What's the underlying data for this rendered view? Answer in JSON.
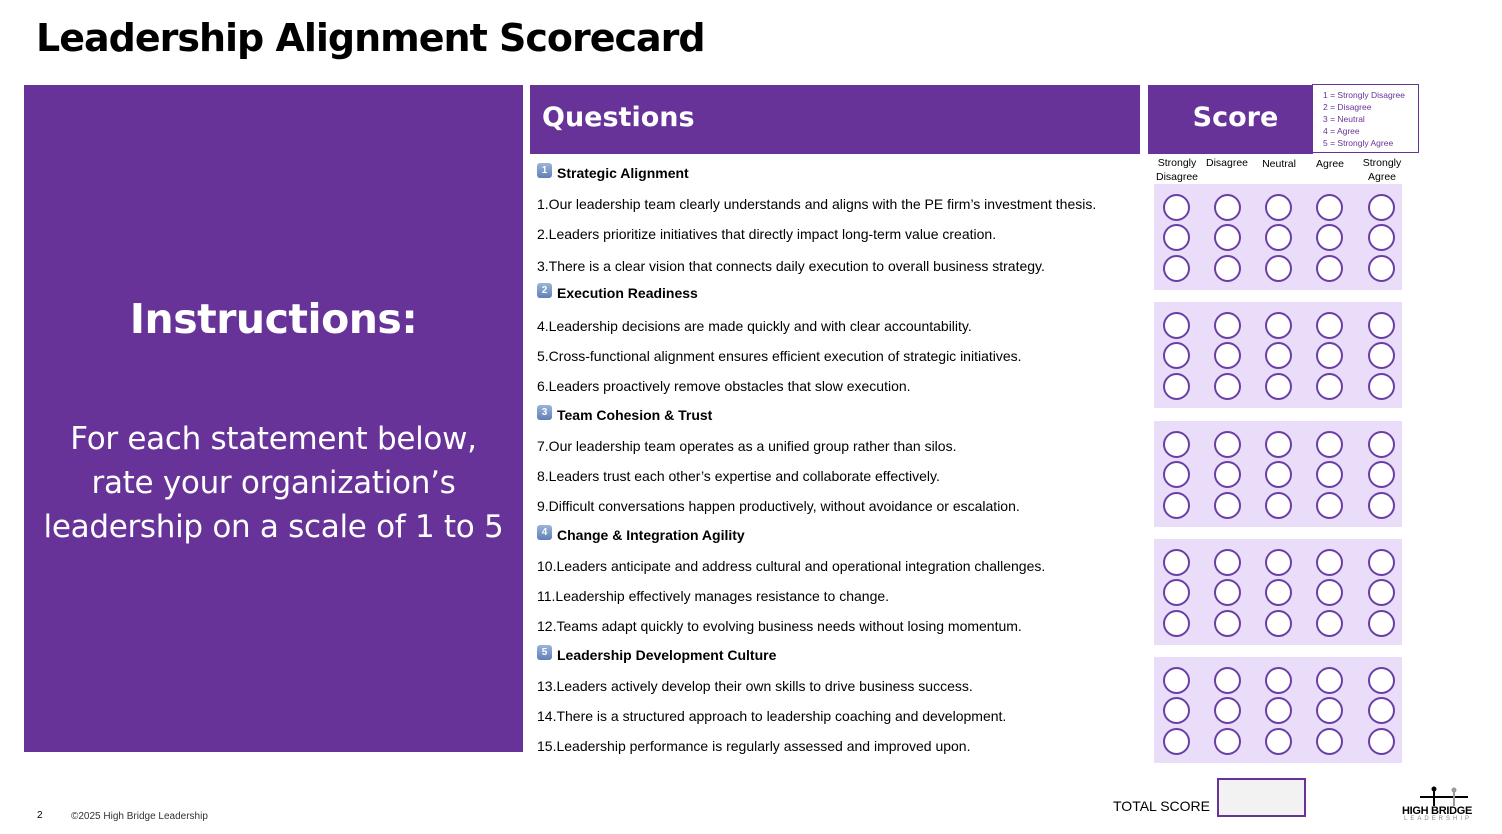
{
  "title": "Leadership Alignment Scorecard",
  "instructions": {
    "heading": "Instructions:",
    "body": "For each statement below, rate your organization’s leadership on a scale of 1 to 5"
  },
  "questions_header": "Questions",
  "score_header": "Score",
  "legend": [
    "1 = Strongly Disagree",
    "2 = Disagree",
    "3 = Neutral",
    "4 = Agree",
    "5 = Strongly Agree"
  ],
  "columns": [
    "Strongly Disagree",
    "Disagree",
    "Neutral",
    "Agree",
    "Strongly Agree"
  ],
  "sections": [
    {
      "number": "1",
      "title": "Strategic Alignment",
      "questions": [
        "1.Our leadership team clearly understands and aligns with the PE firm’s investment thesis.",
        "2.Leaders prioritize initiatives that directly impact long-term value creation.",
        "3.There is a clear vision that connects daily execution to overall business strategy."
      ]
    },
    {
      "number": "2",
      "title": "Execution Readiness",
      "questions": [
        "4.Leadership decisions are made quickly and with clear accountability.",
        "5.Cross-functional alignment ensures efficient execution of strategic initiatives.",
        "6.Leaders proactively remove obstacles that slow execution."
      ]
    },
    {
      "number": "3",
      "title": "Team Cohesion & Trust",
      "questions": [
        "7.Our leadership team operates as a unified group rather than silos.",
        "8.Leaders trust each other’s expertise and collaborate effectively.",
        "9.Difficult conversations happen productively, without avoidance or escalation."
      ]
    },
    {
      "number": "4",
      "title": "Change & Integration Agility",
      "questions": [
        "10.Leaders anticipate and address cultural and operational integration challenges.",
        "11.Leadership effectively manages resistance to change.",
        "12.Teams adapt quickly to evolving business needs without losing momentum."
      ]
    },
    {
      "number": "5",
      "title": "Leadership Development Culture",
      "questions": [
        "13.Leaders actively develop their own skills to drive business success.",
        "14.There is a structured approach to leadership coaching and development.",
        "15.Leadership performance is regularly assessed and improved upon."
      ]
    }
  ],
  "total_score_label": "TOTAL SCORE",
  "total_score_value": "",
  "footer": {
    "page_number": "2",
    "copyright": "©2025 High Bridge Leadership",
    "logo_main": "HIGH BRIDGE",
    "logo_sub": "LEADERSHIP"
  },
  "colors": {
    "brand_purple": "#673399",
    "score_block_bg": "#e9ddf9",
    "radio_border": "#6b3ea5"
  }
}
